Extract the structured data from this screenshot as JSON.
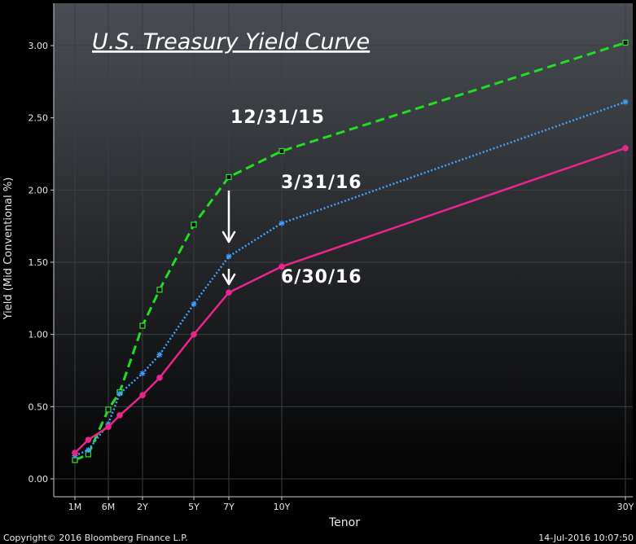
{
  "chart_data": {
    "type": "line",
    "title": "U.S. Treasury Yield Curve",
    "xlabel": "Tenor",
    "ylabel": "Yield (Mid Conventional %)",
    "ylim": [
      -0.1,
      3.25
    ],
    "y_ticks": [
      0.0,
      0.5,
      1.0,
      1.5,
      2.0,
      2.5,
      3.0
    ],
    "y_tick_labels": [
      "0.00",
      "0.50",
      "1.00",
      "1.50",
      "2.00",
      "2.50",
      "3.00"
    ],
    "x_ticks": [
      {
        "label": "1M",
        "years": 0.0833
      },
      {
        "label": "6M",
        "years": 0.5
      },
      {
        "label": "2Y",
        "years": 2
      },
      {
        "label": "5Y",
        "years": 5
      },
      {
        "label": "7Y",
        "years": 7
      },
      {
        "label": "10Y",
        "years": 10
      },
      {
        "label": "30Y",
        "years": 30
      }
    ],
    "grid": true,
    "series": [
      {
        "name": "12/31/15",
        "color": "#22dd22",
        "style": "dashed",
        "marker": "square",
        "points": [
          {
            "x": 0.0833,
            "y": 0.13
          },
          {
            "x": 0.25,
            "y": 0.17
          },
          {
            "x": 0.5,
            "y": 0.48
          },
          {
            "x": 1,
            "y": 0.6
          },
          {
            "x": 2,
            "y": 1.06
          },
          {
            "x": 3,
            "y": 1.31
          },
          {
            "x": 5,
            "y": 1.76
          },
          {
            "x": 7,
            "y": 2.09
          },
          {
            "x": 10,
            "y": 2.27
          },
          {
            "x": 30,
            "y": 3.02
          }
        ]
      },
      {
        "name": "3/31/16",
        "color": "#3fa0ff",
        "style": "dotted",
        "marker": "star",
        "points": [
          {
            "x": 0.0833,
            "y": 0.16
          },
          {
            "x": 0.25,
            "y": 0.2
          },
          {
            "x": 0.5,
            "y": 0.38
          },
          {
            "x": 1,
            "y": 0.59
          },
          {
            "x": 2,
            "y": 0.73
          },
          {
            "x": 3,
            "y": 0.86
          },
          {
            "x": 5,
            "y": 1.21
          },
          {
            "x": 7,
            "y": 1.54
          },
          {
            "x": 10,
            "y": 1.77
          },
          {
            "x": 30,
            "y": 2.61
          }
        ]
      },
      {
        "name": "6/30/16",
        "color": "#e8258a",
        "style": "solid",
        "marker": "circle",
        "points": [
          {
            "x": 0.0833,
            "y": 0.18
          },
          {
            "x": 0.25,
            "y": 0.27
          },
          {
            "x": 0.5,
            "y": 0.36
          },
          {
            "x": 1,
            "y": 0.44
          },
          {
            "x": 2,
            "y": 0.58
          },
          {
            "x": 3,
            "y": 0.7
          },
          {
            "x": 5,
            "y": 1.0
          },
          {
            "x": 7,
            "y": 1.29
          },
          {
            "x": 10,
            "y": 1.47
          },
          {
            "x": 30,
            "y": 2.29
          }
        ]
      }
    ],
    "annotations": [
      "12/31/15",
      "3/31/16",
      "6/30/16"
    ]
  },
  "footer": {
    "copyright": "Copyright© 2016 Bloomberg Finance L.P.",
    "timestamp": "14-Jul-2016 10:07:50"
  },
  "colors": {
    "background_top": "#4a4e54",
    "background_bottom": "#000000",
    "grid": "#3a3d42"
  }
}
